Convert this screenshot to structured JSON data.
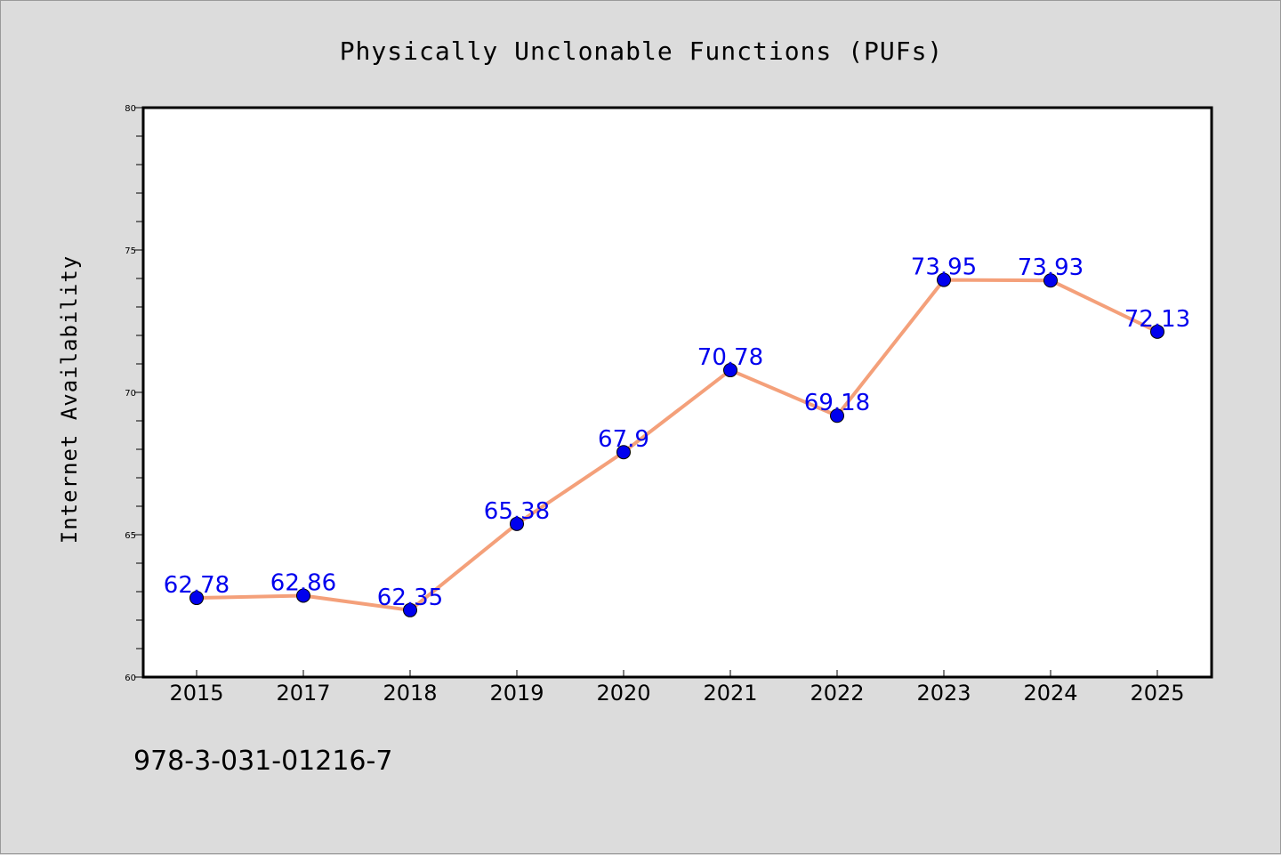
{
  "chart_data": {
    "type": "line",
    "title": "Physically Unclonable Functions (PUFs)",
    "xlabel": "",
    "ylabel": "Internet Availability",
    "categories": [
      "2015",
      "2017",
      "2018",
      "2019",
      "2020",
      "2021",
      "2022",
      "2023",
      "2024",
      "2025"
    ],
    "series": [
      {
        "values": [
          62.78,
          62.86,
          62.35,
          65.38,
          67.9,
          70.78,
          69.18,
          73.95,
          73.93,
          72.13
        ],
        "labels": [
          "62.78",
          "62.86",
          "62.35",
          "65.38",
          "67.9",
          "70.78",
          "69.18",
          "73.95",
          "73.93",
          "72.13"
        ],
        "line_color": "#f4a07a",
        "marker_color": "#0000ee"
      }
    ],
    "ylim": [
      60,
      80
    ],
    "yticks": [
      "60",
      "65",
      "70",
      "75",
      "80"
    ],
    "grid": false,
    "legend": "none"
  },
  "footnote": "978-3-031-01216-7",
  "colors": {
    "background": "#dcdcdc",
    "plot_background": "#ffffff",
    "data_label": "#0000ee"
  }
}
